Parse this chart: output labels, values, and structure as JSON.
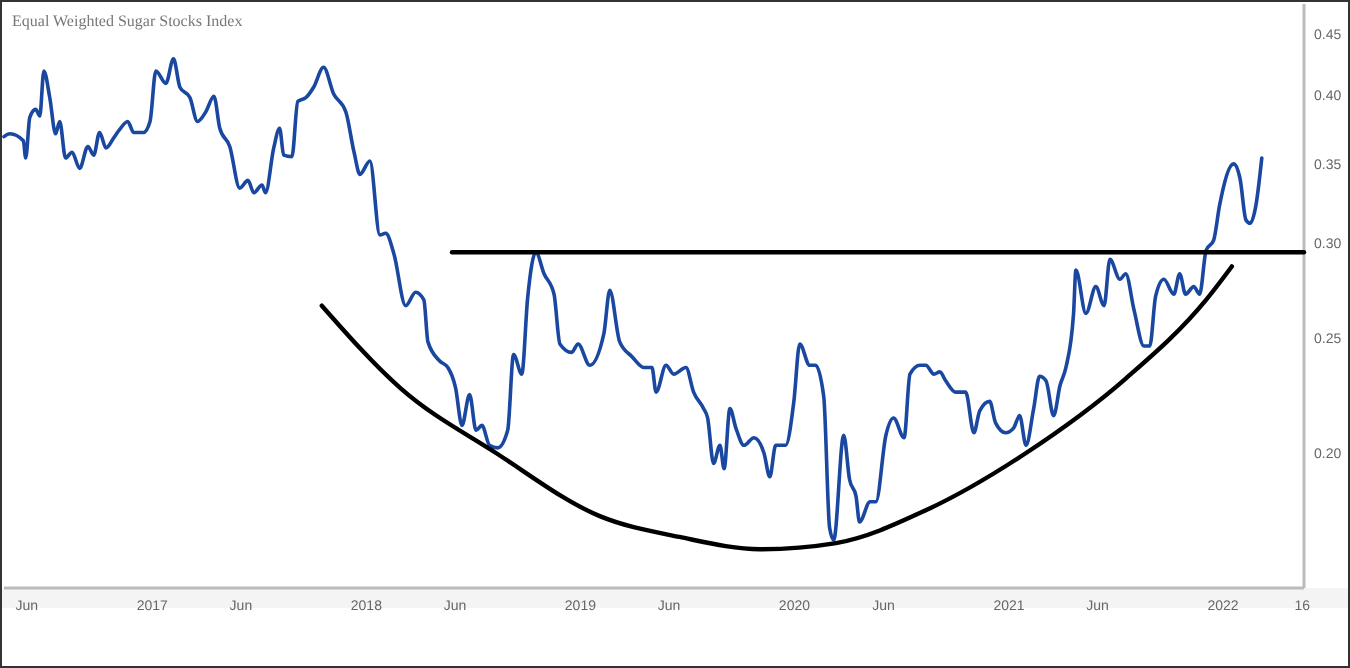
{
  "chart_data": {
    "type": "line",
    "title": "Equal Weighted Sugar Stocks Index",
    "log": "y",
    "grid": false,
    "marker": "none",
    "line_style": "solid",
    "xlim": [
      "2016-04-23",
      "2022-05-19"
    ],
    "xticks": [
      {
        "value": "2016-06-01",
        "label": "Jun"
      },
      {
        "value": "2017-01-01",
        "label": "2017"
      },
      {
        "value": "2017-06-01",
        "label": "Jun"
      },
      {
        "value": "2018-01-01",
        "label": "2018"
      },
      {
        "value": "2018-06-01",
        "label": "Jun"
      },
      {
        "value": "2019-01-01",
        "label": "2019"
      },
      {
        "value": "2019-06-01",
        "label": "Jun"
      },
      {
        "value": "2020-01-01",
        "label": "2020"
      },
      {
        "value": "2020-06-01",
        "label": "Jun"
      },
      {
        "value": "2021-01-01",
        "label": "2021"
      },
      {
        "value": "2021-06-01",
        "label": "Jun"
      },
      {
        "value": "2022-01-01",
        "label": "2022"
      },
      {
        "value": "2022-05-16",
        "label": "16"
      }
    ],
    "ylim": [
      0.154,
      0.477
    ],
    "yticks": [
      {
        "value": 0.2,
        "label": "0.20"
      },
      {
        "value": 0.25,
        "label": "0.25"
      },
      {
        "value": 0.3,
        "label": "0.30"
      },
      {
        "value": 0.35,
        "label": "0.35"
      },
      {
        "value": 0.4,
        "label": "0.40"
      },
      {
        "value": 0.45,
        "label": "0.45"
      }
    ],
    "series": [
      {
        "color": "#1a47a0",
        "x": [
          "2016-04-23",
          "2016-05-03",
          "2016-05-26",
          "2016-05-30",
          "2016-06-06",
          "2016-06-16",
          "2016-06-23",
          "2016-06-30",
          "2016-07-10",
          "2016-07-20",
          "2016-07-27",
          "2016-08-06",
          "2016-08-17",
          "2016-08-30",
          "2016-09-13",
          "2016-09-23",
          "2016-10-03",
          "2016-10-14",
          "2016-10-27",
          "2016-11-06",
          "2016-11-20",
          "2016-11-30",
          "2016-12-17",
          "2016-12-28",
          "2017-01-07",
          "2017-01-24",
          "2017-02-06",
          "2017-02-17",
          "2017-03-06",
          "2017-03-19",
          "2017-04-02",
          "2017-04-16",
          "2017-04-26",
          "2017-05-13",
          "2017-05-30",
          "2017-06-13",
          "2017-06-23",
          "2017-07-07",
          "2017-07-13",
          "2017-07-27",
          "2017-08-06",
          "2017-08-13",
          "2017-08-27",
          "2017-09-06",
          "2017-09-20",
          "2017-10-03",
          "2017-10-20",
          "2017-11-06",
          "2017-11-27",
          "2017-12-11",
          "2017-12-21",
          "2018-01-07",
          "2018-01-24",
          "2018-02-03",
          "2018-02-17",
          "2018-03-09",
          "2018-03-26",
          "2018-04-09",
          "2018-04-16",
          "2018-05-06",
          "2018-05-20",
          "2018-06-02",
          "2018-06-13",
          "2018-06-26",
          "2018-07-07",
          "2018-07-17",
          "2018-07-30",
          "2018-08-13",
          "2018-08-30",
          "2018-09-09",
          "2018-09-23",
          "2018-10-03",
          "2018-10-17",
          "2018-10-31",
          "2018-11-17",
          "2018-11-27",
          "2018-12-17",
          "2018-12-28",
          "2019-01-17",
          "2019-02-10",
          "2019-02-20",
          "2019-03-09",
          "2019-03-30",
          "2019-04-19",
          "2019-05-03",
          "2019-05-10",
          "2019-05-27",
          "2019-06-09",
          "2019-06-30",
          "2019-07-13",
          "2019-07-30",
          "2019-08-06",
          "2019-08-16",
          "2019-08-27",
          "2019-09-03",
          "2019-09-13",
          "2019-09-23",
          "2019-10-07",
          "2019-10-24",
          "2019-11-10",
          "2019-11-20",
          "2019-11-30",
          "2019-12-17",
          "2019-12-31",
          "2020-01-10",
          "2020-01-27",
          "2020-02-06",
          "2020-02-20",
          "2020-03-01",
          "2020-03-08",
          "2020-03-25",
          "2020-04-04",
          "2020-04-15",
          "2020-04-21",
          "2020-05-09",
          "2020-05-19",
          "2020-06-05",
          "2020-06-18",
          "2020-07-06",
          "2020-07-16",
          "2020-08-02",
          "2020-08-12",
          "2020-08-26",
          "2020-09-05",
          "2020-09-15",
          "2020-10-02",
          "2020-10-19",
          "2020-11-02",
          "2020-11-12",
          "2020-11-29",
          "2020-12-09",
          "2020-12-26",
          "2021-01-09",
          "2021-01-19",
          "2021-01-30",
          "2021-02-12",
          "2021-02-22",
          "2021-03-05",
          "2021-03-18",
          "2021-03-29",
          "2021-04-08",
          "2021-04-21",
          "2021-04-25",
          "2021-05-12",
          "2021-05-29",
          "2021-06-12",
          "2021-06-22",
          "2021-07-09",
          "2021-07-19",
          "2021-08-02",
          "2021-08-19",
          "2021-08-29",
          "2021-09-08",
          "2021-09-22",
          "2021-10-09",
          "2021-10-19",
          "2021-10-29",
          "2021-11-12",
          "2021-11-22",
          "2021-12-03",
          "2021-12-16",
          "2021-12-26",
          "2022-01-19",
          "2022-01-30",
          "2022-02-09",
          "2022-02-16",
          "2022-02-26",
          "2022-03-08"
        ],
        "values": [
          0.369,
          0.371,
          0.366,
          0.354,
          0.383,
          0.389,
          0.384,
          0.419,
          0.398,
          0.371,
          0.38,
          0.354,
          0.358,
          0.347,
          0.362,
          0.356,
          0.372,
          0.361,
          0.368,
          0.374,
          0.38,
          0.372,
          0.372,
          0.38,
          0.419,
          0.409,
          0.429,
          0.406,
          0.398,
          0.38,
          0.387,
          0.399,
          0.375,
          0.362,
          0.334,
          0.339,
          0.331,
          0.336,
          0.331,
          0.361,
          0.375,
          0.356,
          0.355,
          0.395,
          0.398,
          0.406,
          0.422,
          0.401,
          0.387,
          0.358,
          0.343,
          0.352,
          0.305,
          0.306,
          0.294,
          0.266,
          0.273,
          0.269,
          0.248,
          0.239,
          0.236,
          0.227,
          0.211,
          0.224,
          0.209,
          0.211,
          0.203,
          0.202,
          0.209,
          0.242,
          0.233,
          0.27,
          0.295,
          0.283,
          0.272,
          0.247,
          0.243,
          0.247,
          0.237,
          0.252,
          0.274,
          0.248,
          0.241,
          0.236,
          0.236,
          0.225,
          0.237,
          0.233,
          0.236,
          0.225,
          0.218,
          0.214,
          0.196,
          0.203,
          0.194,
          0.218,
          0.21,
          0.203,
          0.206,
          0.2,
          0.191,
          0.203,
          0.203,
          0.221,
          0.247,
          0.237,
          0.237,
          0.223,
          0.173,
          0.169,
          0.207,
          0.19,
          0.184,
          0.175,
          0.182,
          0.182,
          0.207,
          0.214,
          0.206,
          0.233,
          0.237,
          0.237,
          0.233,
          0.234,
          0.23,
          0.225,
          0.225,
          0.208,
          0.217,
          0.221,
          0.212,
          0.208,
          0.21,
          0.215,
          0.203,
          0.218,
          0.232,
          0.23,
          0.215,
          0.228,
          0.236,
          0.262,
          0.285,
          0.262,
          0.276,
          0.266,
          0.291,
          0.28,
          0.283,
          0.264,
          0.246,
          0.246,
          0.271,
          0.28,
          0.272,
          0.283,
          0.272,
          0.276,
          0.272,
          0.296,
          0.302,
          0.323,
          0.35,
          0.34,
          0.314,
          0.312,
          0.323,
          0.354
        ]
      },
      {
        "color": "#000000",
        "x": [
          "2018-05-27",
          "2022-05-19"
        ],
        "values": [
          0.295,
          0.295
        ]
      },
      {
        "color": "#000000",
        "x": [
          "2017-10-17",
          "2018-02-27",
          "2018-08-10",
          "2019-02-03",
          "2019-06-19",
          "2019-11-03",
          "2020-03-12",
          "2020-08-12",
          "2021-01-30",
          "2021-07-19",
          "2021-12-03",
          "2022-01-16"
        ],
        "values": [
          0.266,
          0.227,
          0.2,
          0.177,
          0.17,
          0.166,
          0.168,
          0.179,
          0.2,
          0.231,
          0.269,
          0.287
        ]
      }
    ]
  }
}
